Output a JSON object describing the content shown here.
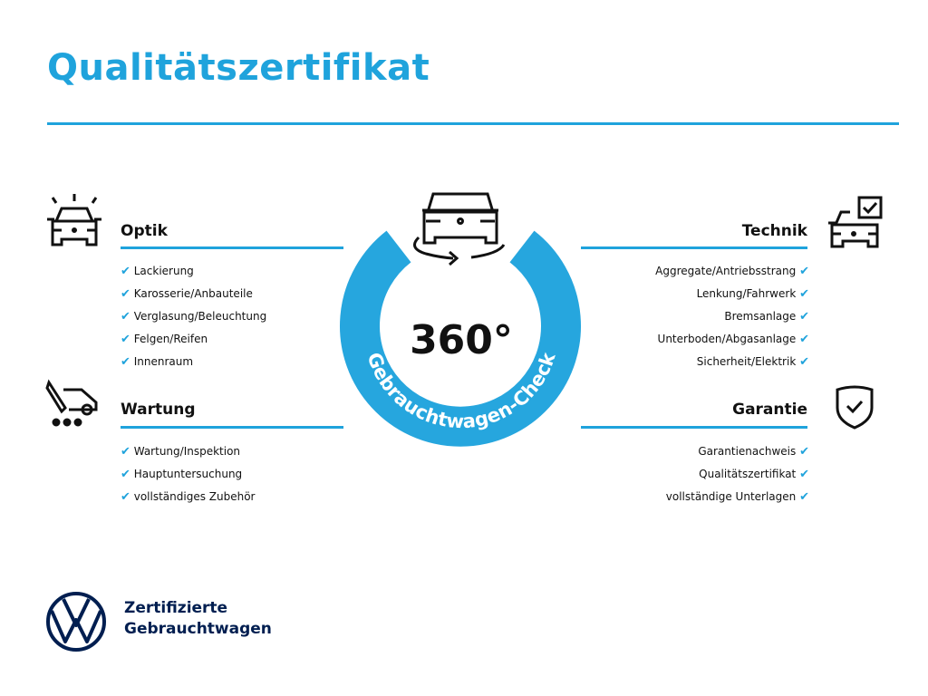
{
  "title": "Qualitätszertifikat",
  "center": {
    "big": "360°",
    "ring_text": "Gebrauchtwagen-Check"
  },
  "sections": {
    "optik": {
      "title": "Optik",
      "icon": "car-lights-icon",
      "items": [
        "Lackierung",
        "Karosserie/Anbauteile",
        "Verglasung/Beleuchtung",
        "Felgen/Reifen",
        "Innenraum"
      ]
    },
    "wartung": {
      "title": "Wartung",
      "icon": "service-van-icon",
      "items": [
        "Wartung/Inspektion",
        "Hauptuntersuchung",
        "vollständiges Zubehör"
      ]
    },
    "technik": {
      "title": "Technik",
      "icon": "car-checkbox-icon",
      "items": [
        "Aggregate/Antriebsstrang",
        "Lenkung/Fahrwerk",
        "Bremsanlage",
        "Unterboden/Abgasanlage",
        "Sicherheit/Elektrik"
      ]
    },
    "garantie": {
      "title": "Garantie",
      "icon": "shield-check-icon",
      "items": [
        "Garantienachweis",
        "Qualitätszertifikat",
        "vollständige Unterlagen"
      ]
    }
  },
  "check_symbol": "✔",
  "footer": {
    "line1": "Zertifizierte",
    "line2": "Gebrauchtwagen",
    "logo": "VW"
  },
  "colors": {
    "accent": "#1fa3dc",
    "navy": "#001e50",
    "text": "#111111"
  }
}
